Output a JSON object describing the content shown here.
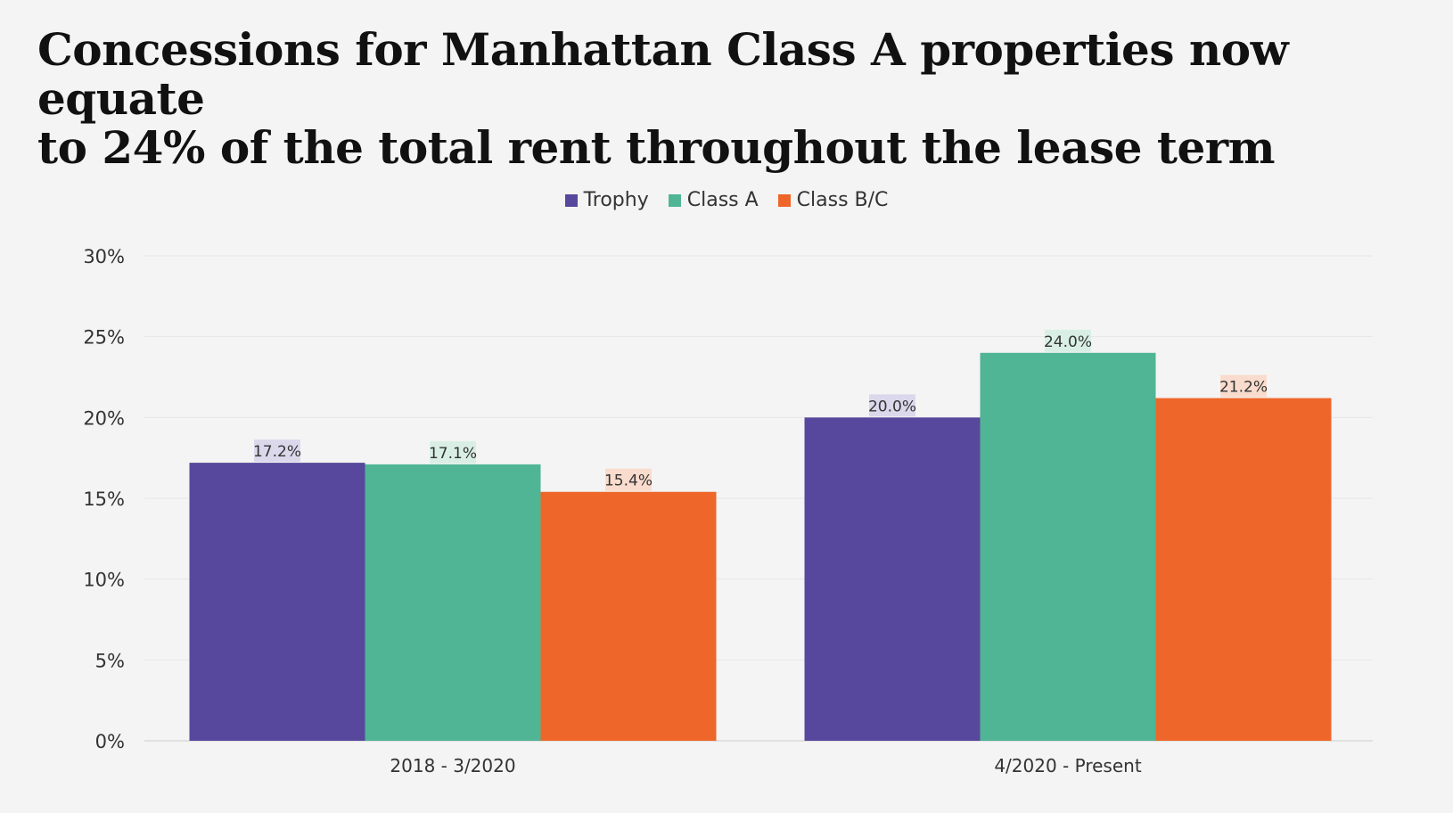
{
  "title_lines": [
    "Concessions for Manhattan Class A properties now equate",
    "to 24% of the total rent throughout the lease term"
  ],
  "colors": {
    "background": "#f4f4f4",
    "grid": "#e6e6e6",
    "axis": "#cccccc"
  },
  "chart_data": {
    "type": "bar",
    "title": "Concessions for Manhattan Class A properties now equate to 24% of the total rent throughout the lease term",
    "categories": [
      "2018 - 3/2020",
      "4/2020 - Present"
    ],
    "series": [
      {
        "name": "Trophy",
        "values": [
          17.2,
          20.0
        ],
        "labels": [
          "17.2%",
          "20.0%"
        ],
        "color": "#58489d",
        "label_bg": "#dcd8ec"
      },
      {
        "name": "Class A",
        "values": [
          17.1,
          24.0
        ],
        "labels": [
          "17.1%",
          "24.0%"
        ],
        "color": "#4fb595",
        "label_bg": "#d9efe6"
      },
      {
        "name": "Class B/C",
        "values": [
          15.4,
          21.2
        ],
        "labels": [
          "15.4%",
          "21.2%"
        ],
        "color": "#ee6629",
        "label_bg": "#f9dccd"
      }
    ],
    "ylim": [
      0,
      30
    ],
    "yticks": [
      0,
      5,
      10,
      15,
      20,
      25,
      30
    ],
    "ytick_labels": [
      "0%",
      "5%",
      "10%",
      "15%",
      "20%",
      "25%",
      "30%"
    ],
    "xlabel": "",
    "ylabel": "",
    "legend": "top-center",
    "grid": true
  }
}
